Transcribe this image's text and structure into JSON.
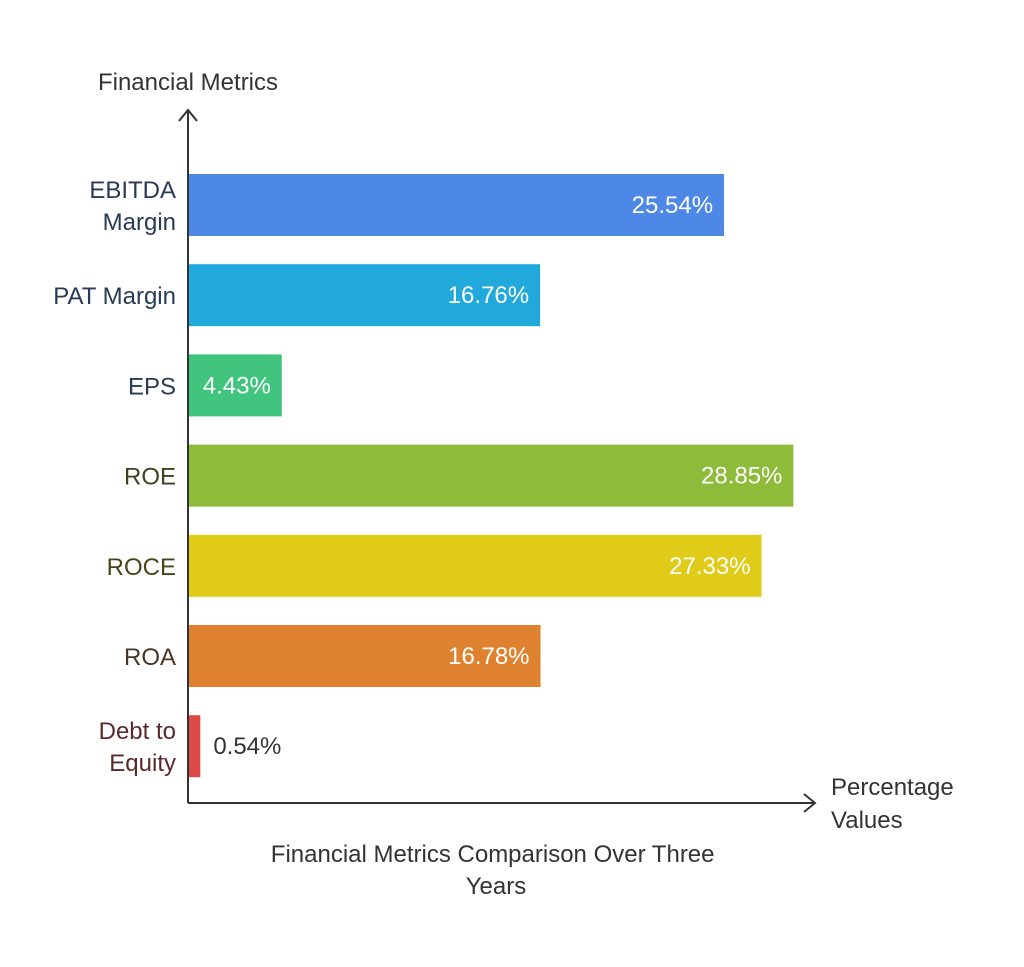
{
  "chart_data": {
    "type": "bar",
    "orientation": "horizontal",
    "title": "Financial Metrics Comparison Over Three Years",
    "ylabel": "Financial Metrics",
    "xlabel": "Percentage Values",
    "categories": [
      "EBITDA Margin",
      "PAT Margin",
      "EPS",
      "ROE",
      "ROCE",
      "ROA",
      "Debt to Equity"
    ],
    "values": [
      25.54,
      16.76,
      4.43,
      28.85,
      27.33,
      16.78,
      0.54
    ],
    "value_labels": [
      "25.54%",
      "16.76%",
      "4.43%",
      "28.85%",
      "27.33%",
      "16.78%",
      "0.54%"
    ],
    "colors": [
      "#4e88e6",
      "#21a9dc",
      "#41c57e",
      "#8fbb3b",
      "#dfcb18",
      "#df8230",
      "#dc4a46"
    ],
    "label_colors": [
      "#283a55",
      "#283a55",
      "#283a55",
      "#3a4420",
      "#4a4418",
      "#4a3425",
      "#5a2a2a"
    ],
    "grid": false,
    "legend": "none"
  }
}
